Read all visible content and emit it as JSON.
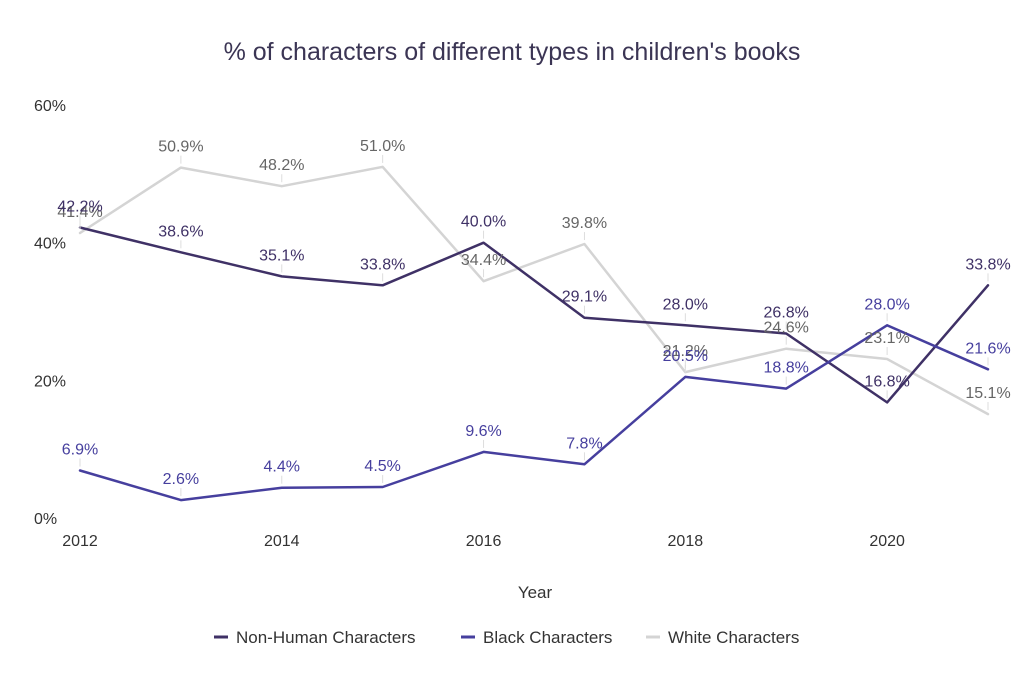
{
  "chart_data": {
    "type": "line",
    "title": "% of characters of different types in children's books",
    "xlabel": "Year",
    "ylabel": "",
    "x": [
      2012,
      2013,
      2014,
      2015,
      2016,
      2017,
      2018,
      2019,
      2020,
      2021
    ],
    "x_ticks": [
      "2012",
      "2014",
      "2016",
      "2018",
      "2020"
    ],
    "ylim": [
      0,
      60
    ],
    "y_ticks": [
      "0%",
      "20%",
      "40%",
      "60%"
    ],
    "grid": false,
    "legend_position": "bottom",
    "series": [
      {
        "name": "Non-Human Characters",
        "color": "#3f3166",
        "values": [
          42.2,
          38.6,
          35.1,
          33.8,
          40.0,
          29.1,
          28.0,
          26.8,
          16.8,
          33.8
        ],
        "labels": [
          "42.2%",
          "38.6%",
          "35.1%",
          "33.8%",
          "40.0%",
          "29.1%",
          "28.0%",
          "26.8%",
          "16.8%",
          "33.8%"
        ]
      },
      {
        "name": "Black Characters",
        "color": "#463f9e",
        "values": [
          6.9,
          2.6,
          4.4,
          4.5,
          9.6,
          7.8,
          20.5,
          18.8,
          28.0,
          21.6
        ],
        "labels": [
          "6.9%",
          "2.6%",
          "4.4%",
          "4.5%",
          "9.6%",
          "7.8%",
          "20.5%",
          "18.8%",
          "28.0%",
          "21.6%"
        ]
      },
      {
        "name": "White Characters",
        "color": "#d4d4d4",
        "label_color": "#666666",
        "values": [
          41.4,
          50.9,
          48.2,
          51.0,
          34.4,
          39.8,
          21.2,
          24.6,
          23.1,
          15.1
        ],
        "labels": [
          "41.4%",
          "50.9%",
          "48.2%",
          "51.0%",
          "34.4%",
          "39.8%",
          "21.2%",
          "24.6%",
          "23.1%",
          "15.1%"
        ]
      }
    ]
  }
}
